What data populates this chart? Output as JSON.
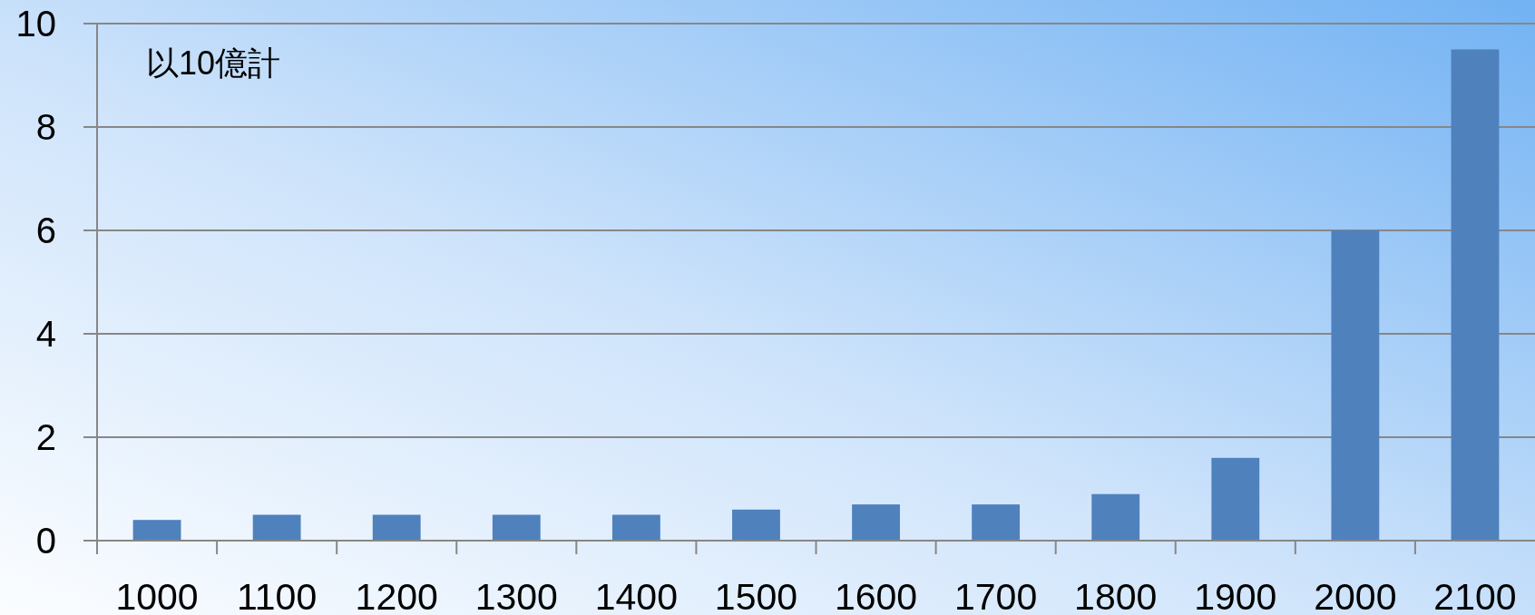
{
  "chart_data": {
    "type": "bar",
    "categories": [
      "1000",
      "1100",
      "1200",
      "1300",
      "1400",
      "1500",
      "1600",
      "1700",
      "1800",
      "1900",
      "2000",
      "2100"
    ],
    "values": [
      0.4,
      0.5,
      0.5,
      0.5,
      0.5,
      0.6,
      0.7,
      0.7,
      0.9,
      1.6,
      6.0,
      9.5
    ],
    "color": "#4f81bd",
    "ylim": [
      0,
      10
    ],
    "yticks": [
      0,
      2,
      4,
      6,
      8,
      10
    ],
    "grid": "y",
    "annotations": [
      "以10億計"
    ]
  }
}
